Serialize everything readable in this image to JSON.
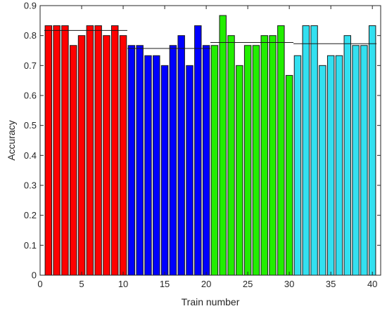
{
  "chart_data": {
    "type": "bar",
    "title": "",
    "xlabel": "Train number",
    "ylabel": "Accuracy",
    "xlim": [
      0,
      41
    ],
    "ylim": [
      0,
      0.9
    ],
    "xticks": [
      0,
      5,
      10,
      15,
      20,
      25,
      30,
      35,
      40
    ],
    "yticks": [
      0,
      0.1,
      0.2,
      0.3,
      0.4,
      0.5,
      0.6,
      0.7,
      0.8,
      0.9
    ],
    "grid": false,
    "series": [
      {
        "color": "#ff0000",
        "x": [
          1,
          2,
          3,
          4,
          5,
          6,
          7,
          8,
          9,
          10
        ],
        "values": [
          0.833,
          0.833,
          0.833,
          0.767,
          0.8,
          0.833,
          0.833,
          0.8,
          0.833,
          0.8
        ],
        "mean": 0.817
      },
      {
        "color": "#0000ff",
        "x": [
          11,
          12,
          13,
          14,
          15,
          16,
          17,
          18,
          19,
          20
        ],
        "values": [
          0.767,
          0.767,
          0.733,
          0.733,
          0.7,
          0.767,
          0.8,
          0.7,
          0.833,
          0.767
        ],
        "mean": 0.757
      },
      {
        "color": "#22ee00",
        "x": [
          21,
          22,
          23,
          24,
          25,
          26,
          27,
          28,
          29,
          30
        ],
        "values": [
          0.767,
          0.867,
          0.8,
          0.7,
          0.767,
          0.767,
          0.8,
          0.8,
          0.833,
          0.667
        ],
        "mean": 0.777
      },
      {
        "color": "#33e0f0",
        "x": [
          31,
          32,
          33,
          34,
          35,
          36,
          37,
          38,
          39,
          40
        ],
        "values": [
          0.733,
          0.833,
          0.833,
          0.7,
          0.733,
          0.733,
          0.8,
          0.767,
          0.767,
          0.833
        ],
        "mean": 0.773
      }
    ]
  }
}
